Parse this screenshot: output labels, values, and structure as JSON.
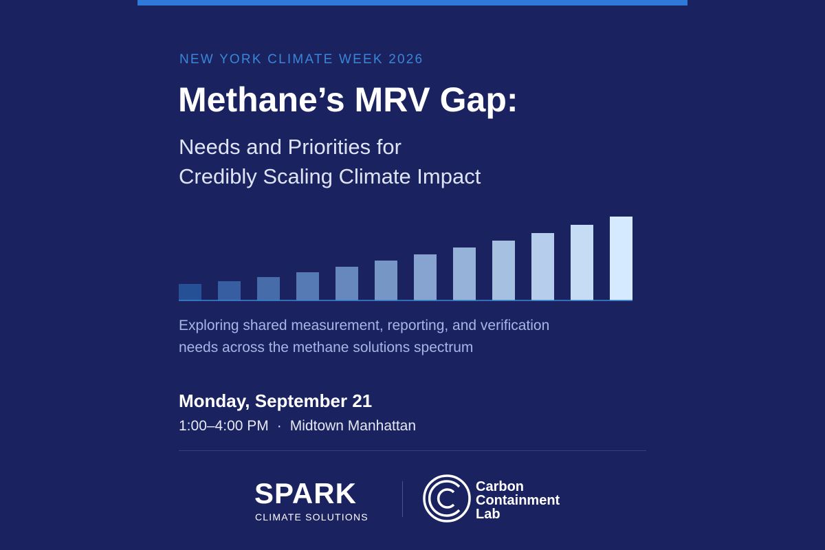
{
  "header": {
    "eyebrow": "NEW YORK CLIMATE WEEK 2026",
    "title": "Methane’s MRV Gap:",
    "subtitle": [
      "Needs and Priorities for",
      "Credibly Scaling Climate Impact"
    ]
  },
  "description": [
    "Exploring shared measurement, reporting, and verification",
    "needs across the methane solutions spectrum"
  ],
  "event": {
    "date": "Monday, September 21",
    "time": "1:00–4:00 PM",
    "separator": "·",
    "location": "Midtown Manhattan"
  },
  "logos": {
    "spark": {
      "name": "SPARK",
      "tagline": "CLIMATE SOLUTIONS"
    },
    "ccl": {
      "lines": [
        "Carbon",
        "Containment",
        "Lab"
      ]
    }
  }
}
